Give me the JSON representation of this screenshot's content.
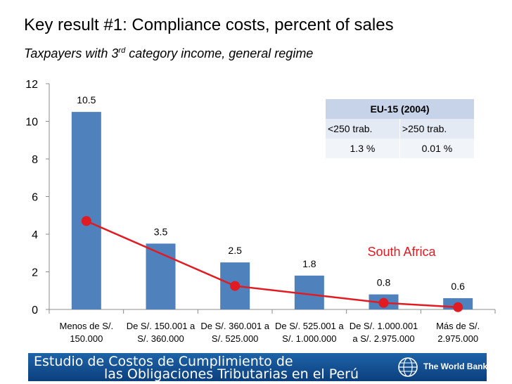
{
  "title": "Key result #1: Compliance costs, percent of sales",
  "subtitle_pre": "Taxpayers with 3",
  "subtitle_sup": "rd",
  "subtitle_post": " category income, general regime",
  "chart_data": {
    "type": "bar",
    "categories": [
      [
        "Menos de S/.",
        "150.000"
      ],
      [
        "De S/. 150.001 a",
        "S/. 360.000"
      ],
      [
        "De S/. 360.001 a",
        "S/. 525.000"
      ],
      [
        "De S/. 525.001 a",
        "S/. 1.000.000"
      ],
      [
        "De S/. 1.000.001",
        "a S/. 2.975.000"
      ],
      [
        "Más de S/.",
        "2.975.000"
      ]
    ],
    "series": [
      {
        "type": "bar",
        "values": [
          10.5,
          3.5,
          2.5,
          1.8,
          0.8,
          0.6
        ],
        "data_labels": [
          "10.5",
          "3.5",
          "2.5",
          "1.8",
          "0.8",
          "0.6"
        ],
        "color": "#4f81bd"
      },
      {
        "type": "line",
        "name": "South Africa",
        "values": [
          4.7,
          null,
          1.25,
          null,
          0.35,
          0.12
        ],
        "color": "#e11b22"
      }
    ],
    "ylim": [
      0,
      12
    ],
    "yticks": [
      "0",
      "2",
      "4",
      "6",
      "8",
      "10",
      "12"
    ],
    "grid": false
  },
  "eu_table": {
    "header": "EU-15 (2004)",
    "columns": [
      "<250 trab.",
      ">250 trab."
    ],
    "values": [
      "1.3 %",
      "0.01 %"
    ]
  },
  "banner": {
    "line1": "Estudio de Costos de Cumplimiento de",
    "line2": "las Obligaciones Tributarias en el Perú",
    "org": "The World Bank"
  },
  "colors": {
    "bar": "#4f81bd",
    "line": "#e11b22",
    "banner": "#1a5aa0"
  }
}
